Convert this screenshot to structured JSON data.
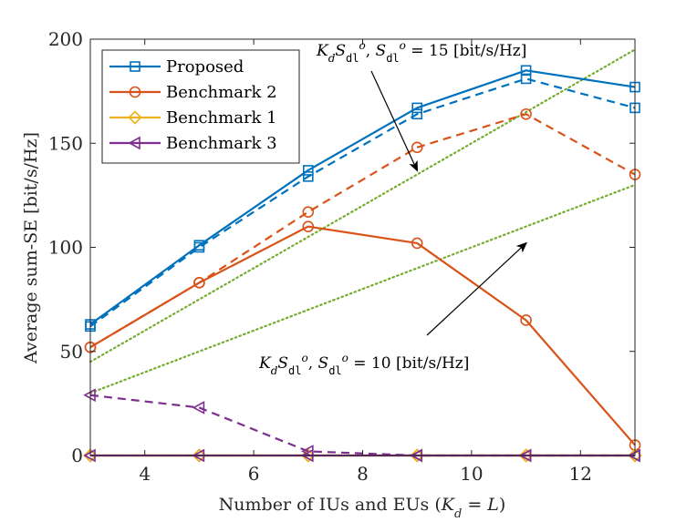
{
  "chart_data": {
    "type": "line",
    "xlabel": "Number of IUs and EUs (K_d = L)",
    "ylabel": "Average sum-SE [bit/s/Hz]",
    "xlim": [
      3,
      13
    ],
    "ylim": [
      0,
      200
    ],
    "xticks": [
      4,
      6,
      8,
      10,
      12
    ],
    "yticks": [
      0,
      50,
      100,
      150,
      200
    ],
    "x": [
      3,
      5,
      7,
      9,
      11,
      13
    ],
    "series": [
      {
        "name": "Proposed",
        "style": "solid",
        "marker": "square",
        "color": "#0072BD",
        "values": [
          63,
          101,
          137,
          167,
          185,
          177
        ]
      },
      {
        "name": "Proposed (dashed)",
        "style": "dashed",
        "marker": "square",
        "color": "#0072BD",
        "values": [
          62,
          100,
          134,
          164,
          181,
          167
        ]
      },
      {
        "name": "Benchmark 2",
        "style": "solid",
        "marker": "circle",
        "color": "#D95319",
        "values": [
          52,
          83,
          110,
          102,
          65,
          5
        ]
      },
      {
        "name": "Benchmark 2 (dashed)",
        "style": "dashed",
        "marker": "circle",
        "color": "#D95319",
        "values": [
          52,
          83,
          117,
          148,
          164,
          135
        ]
      },
      {
        "name": "Benchmark 1",
        "style": "solid",
        "marker": "diamond",
        "color": "#EDB120",
        "values": [
          0,
          0,
          0,
          0,
          0,
          0
        ]
      },
      {
        "name": "Benchmark 1 (dashed)",
        "style": "dashed",
        "marker": "diamond",
        "color": "#EDB120",
        "values": [
          0,
          0,
          0,
          0,
          0,
          0
        ]
      },
      {
        "name": "Benchmark 3",
        "style": "solid",
        "marker": "triangle-left",
        "color": "#7E2F8E",
        "values": [
          0,
          0,
          0,
          0,
          0,
          0
        ]
      },
      {
        "name": "Benchmark 3 (dashed)",
        "style": "dashed",
        "marker": "triangle-left",
        "color": "#7E2F8E",
        "values": [
          29,
          23,
          2,
          0,
          0,
          0
        ]
      }
    ],
    "reference_lines": [
      {
        "label": "K_d S_dl^o, S_dl^o = 15 [bit/s/Hz]",
        "slope": 15,
        "color": "#77AC30",
        "style": "dotted"
      },
      {
        "label": "K_d S_dl^o, S_dl^o = 10 [bit/s/Hz]",
        "slope": 10,
        "color": "#77AC30",
        "style": "dotted"
      }
    ],
    "legend": {
      "position": "top-left",
      "entries": [
        {
          "label": "Proposed",
          "color": "#0072BD",
          "marker": "square"
        },
        {
          "label": "Benchmark 2",
          "color": "#D95319",
          "marker": "circle"
        },
        {
          "label": "Benchmark 1",
          "color": "#EDB120",
          "marker": "diamond"
        },
        {
          "label": "Benchmark 3",
          "color": "#7E2F8E",
          "marker": "triangle-left"
        }
      ]
    },
    "annotations": [
      {
        "text_main": "K_d S_dl^o, S_dl^o = 15 [bit/s/Hz]",
        "prefix": "K",
        "sub": "d",
        "mid": "S",
        "sub2": "dl",
        "sup": "o",
        "sep": ", ",
        "rest": "= 15 [bit/s/Hz]",
        "target": [
          9,
          137
        ]
      },
      {
        "text_main": "K_d S_dl^o, S_dl^o = 10 [bit/s/Hz]",
        "prefix": "K",
        "sub": "d",
        "mid": "S",
        "sub2": "dl",
        "sup": "o",
        "sep": ", ",
        "rest": "= 10 [bit/s/Hz]",
        "target": [
          11,
          102
        ]
      }
    ]
  }
}
